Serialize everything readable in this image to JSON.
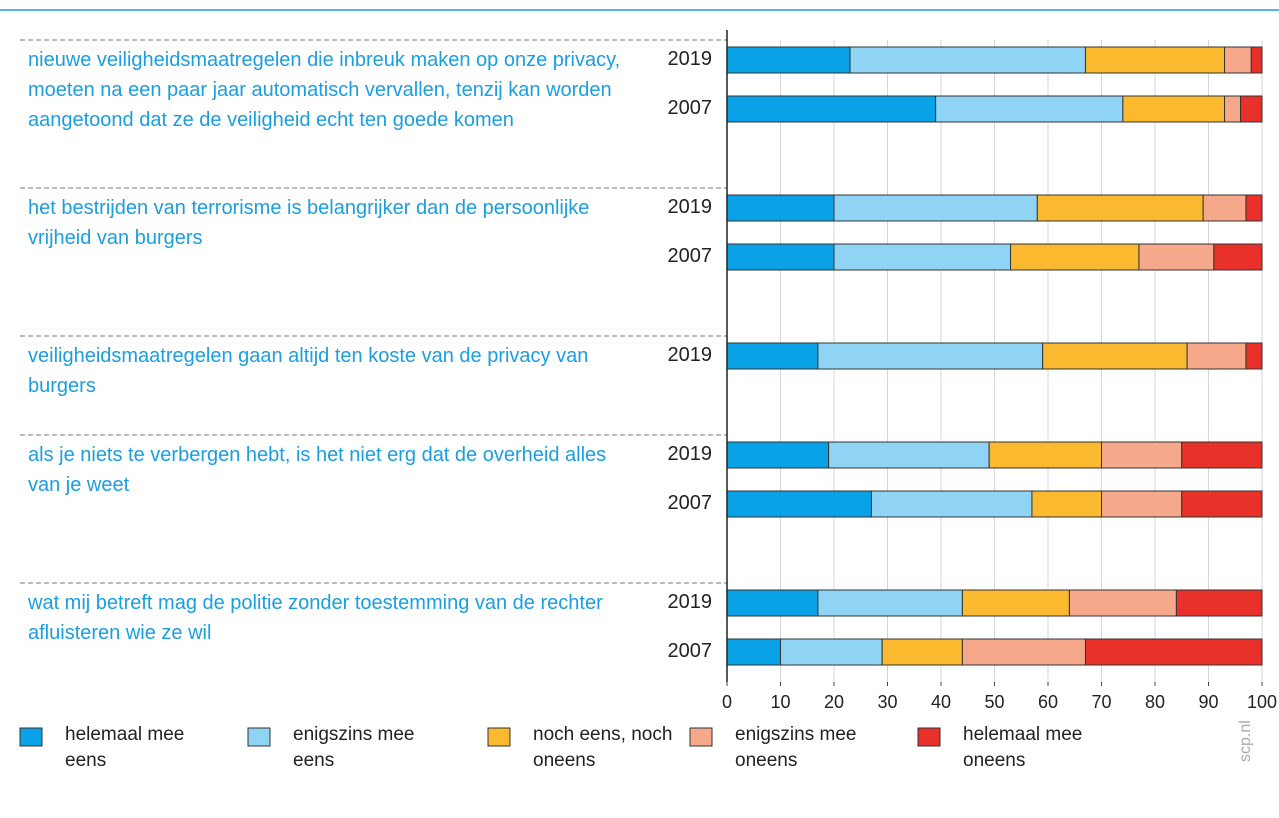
{
  "chart_data": {
    "type": "bar",
    "orientation": "horizontal",
    "stacked": true,
    "series": [
      {
        "name": "helemaal mee eens",
        "color": "#0aa2e6"
      },
      {
        "name": "enigszins mee eens",
        "color": "#8fd3f5"
      },
      {
        "name": "noch eens, noch oneens",
        "color": "#fbb930"
      },
      {
        "name": "enigszins mee oneens",
        "color": "#f6a88a"
      },
      {
        "name": "helemaal mee oneens",
        "color": "#e8312a"
      }
    ],
    "groups": [
      {
        "label": "nieuwe veiligheidsmaatregelen die inbreuk maken op onze privacy, moeten na een paar jaar automatisch vervallen, tenzij kan worden aangetoond dat ze de veiligheid echt ten goede komen",
        "bars": [
          {
            "year": "2019",
            "values": [
              23,
              44,
              26,
              5,
              2
            ]
          },
          {
            "year": "2007",
            "values": [
              39,
              35,
              19,
              3,
              4
            ]
          }
        ]
      },
      {
        "label": "het bestrijden van terrorisme is belangrijker dan de persoonlijke vrijheid van burgers",
        "bars": [
          {
            "year": "2019",
            "values": [
              20,
              38,
              31,
              8,
              3
            ]
          },
          {
            "year": "2007",
            "values": [
              20,
              33,
              24,
              14,
              9
            ]
          }
        ]
      },
      {
        "label": "veiligheidsmaatregelen gaan altijd ten koste van de privacy van burgers",
        "bars": [
          {
            "year": "2019",
            "values": [
              17,
              42,
              27,
              11,
              3
            ]
          }
        ]
      },
      {
        "label": "als je niets te verbergen hebt, is het niet erg dat de overheid alles van je weet",
        "bars": [
          {
            "year": "2019",
            "values": [
              19,
              30,
              21,
              15,
              15
            ]
          },
          {
            "year": "2007",
            "values": [
              27,
              30,
              13,
              15,
              15
            ]
          }
        ]
      },
      {
        "label": "wat mij betreft mag de politie zonder toestemming van de rechter afluisteren wie ze wil",
        "bars": [
          {
            "year": "2019",
            "values": [
              17,
              27,
              20,
              20,
              16
            ]
          },
          {
            "year": "2007",
            "values": [
              10,
              19,
              15,
              23,
              33
            ]
          }
        ]
      }
    ],
    "xlim": [
      0,
      100
    ],
    "xticks": [
      0,
      10,
      20,
      30,
      40,
      50,
      60,
      70,
      80,
      90,
      100
    ],
    "grid": true,
    "source": "scp.nl"
  }
}
